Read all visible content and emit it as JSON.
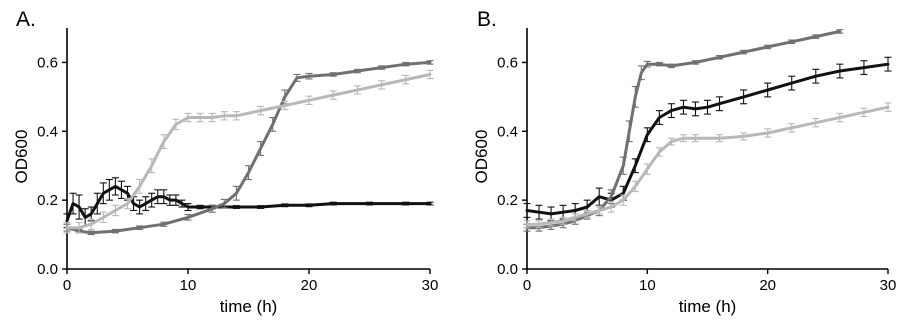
{
  "chart_data": [
    {
      "type": "line",
      "panel": "A.",
      "xlabel": "time (h)",
      "ylabel": "OD600",
      "xlim": [
        0,
        30
      ],
      "ylim": [
        0,
        0.7
      ],
      "xticks": [
        "0",
        "10",
        "20",
        "30"
      ],
      "yticks": [
        "0.0",
        "0.2",
        "0.4",
        "0.6"
      ],
      "grid": false,
      "series": [
        {
          "color": "#111111",
          "x": [
            0,
            0.5,
            1,
            1.5,
            2,
            2.5,
            3,
            3.5,
            4,
            4.5,
            5,
            5.5,
            6,
            6.5,
            7,
            7.5,
            8,
            8.5,
            9,
            9.5,
            10,
            11,
            12,
            14,
            16,
            18,
            20,
            22,
            25,
            28,
            30
          ],
          "y": [
            0.14,
            0.19,
            0.18,
            0.15,
            0.16,
            0.19,
            0.22,
            0.23,
            0.24,
            0.23,
            0.22,
            0.19,
            0.18,
            0.19,
            0.2,
            0.21,
            0.21,
            0.2,
            0.2,
            0.19,
            0.18,
            0.18,
            0.18,
            0.18,
            0.18,
            0.185,
            0.185,
            0.19,
            0.19,
            0.19,
            0.19
          ],
          "err": [
            0.02,
            0.03,
            0.035,
            0.025,
            0.02,
            0.03,
            0.03,
            0.03,
            0.025,
            0.025,
            0.02,
            0.02,
            0.02,
            0.02,
            0.02,
            0.02,
            0.02,
            0.015,
            0.015,
            0.01,
            0.01,
            0.005,
            0.005,
            0.004,
            0.004,
            0.004,
            0.004,
            0.004,
            0.004,
            0.004,
            0.004
          ]
        },
        {
          "color": "#707070",
          "x": [
            0,
            1,
            2,
            4,
            6,
            8,
            10,
            12,
            13,
            14,
            15,
            16,
            17,
            18,
            19,
            20,
            22,
            24,
            26,
            28,
            30
          ],
          "y": [
            0.12,
            0.11,
            0.105,
            0.11,
            0.12,
            0.13,
            0.15,
            0.175,
            0.19,
            0.22,
            0.28,
            0.35,
            0.42,
            0.5,
            0.555,
            0.56,
            0.565,
            0.575,
            0.585,
            0.595,
            0.6
          ],
          "err": [
            0.01,
            0.005,
            0.005,
            0.005,
            0.005,
            0.006,
            0.008,
            0.01,
            0.012,
            0.02,
            0.02,
            0.02,
            0.02,
            0.02,
            0.01,
            0.008,
            0.005,
            0.005,
            0.005,
            0.005,
            0.005
          ]
        },
        {
          "color": "#b8b8b8",
          "x": [
            0,
            1,
            2,
            3,
            4,
            5,
            6,
            7,
            8,
            9,
            10,
            11,
            12,
            13,
            14,
            16,
            18,
            20,
            22,
            24,
            26,
            28,
            30
          ],
          "y": [
            0.12,
            0.12,
            0.13,
            0.15,
            0.17,
            0.19,
            0.24,
            0.3,
            0.37,
            0.42,
            0.44,
            0.44,
            0.44,
            0.445,
            0.445,
            0.46,
            0.475,
            0.49,
            0.505,
            0.52,
            0.535,
            0.55,
            0.565
          ],
          "err": [
            0.015,
            0.015,
            0.015,
            0.015,
            0.015,
            0.015,
            0.02,
            0.02,
            0.02,
            0.015,
            0.012,
            0.012,
            0.012,
            0.012,
            0.012,
            0.012,
            0.012,
            0.012,
            0.012,
            0.012,
            0.012,
            0.012,
            0.012
          ]
        }
      ]
    },
    {
      "type": "line",
      "panel": "B.",
      "xlabel": "time (h)",
      "ylabel": "OD600",
      "xlim": [
        0,
        30
      ],
      "ylim": [
        0,
        0.7
      ],
      "xticks": [
        "0",
        "10",
        "20",
        "30"
      ],
      "yticks": [
        "0.0",
        "0.2",
        "0.4",
        "0.6"
      ],
      "grid": false,
      "series": [
        {
          "color": "#111111",
          "x": [
            0,
            1,
            2,
            3,
            4,
            5,
            6,
            7,
            8,
            9,
            10,
            11,
            12,
            13,
            14,
            15,
            16,
            18,
            20,
            22,
            24,
            26,
            28,
            30
          ],
          "y": [
            0.17,
            0.165,
            0.16,
            0.165,
            0.17,
            0.18,
            0.21,
            0.2,
            0.22,
            0.3,
            0.39,
            0.44,
            0.46,
            0.47,
            0.465,
            0.47,
            0.48,
            0.5,
            0.52,
            0.54,
            0.56,
            0.575,
            0.585,
            0.595
          ],
          "err": [
            0.02,
            0.02,
            0.02,
            0.02,
            0.02,
            0.02,
            0.025,
            0.02,
            0.02,
            0.02,
            0.02,
            0.02,
            0.02,
            0.02,
            0.02,
            0.02,
            0.02,
            0.02,
            0.02,
            0.02,
            0.02,
            0.02,
            0.02,
            0.02
          ]
        },
        {
          "color": "#707070",
          "x": [
            0,
            1,
            2,
            3,
            4,
            5,
            6,
            7,
            8,
            8.5,
            9,
            9.5,
            10,
            11,
            12,
            14,
            16,
            18,
            20,
            22,
            24,
            26
          ],
          "y": [
            0.12,
            0.12,
            0.125,
            0.13,
            0.14,
            0.155,
            0.17,
            0.21,
            0.3,
            0.4,
            0.5,
            0.57,
            0.595,
            0.595,
            0.59,
            0.6,
            0.615,
            0.63,
            0.645,
            0.66,
            0.675,
            0.69
          ],
          "err": [
            0.01,
            0.01,
            0.01,
            0.01,
            0.01,
            0.01,
            0.015,
            0.02,
            0.025,
            0.03,
            0.03,
            0.02,
            0.008,
            0.005,
            0.005,
            0.005,
            0.005,
            0.005,
            0.005,
            0.005,
            0.005,
            0.005
          ]
        },
        {
          "color": "#b8b8b8",
          "x": [
            0,
            1,
            2,
            3,
            4,
            5,
            6,
            7,
            8,
            9,
            10,
            11,
            12,
            13,
            14,
            16,
            18,
            20,
            22,
            24,
            26,
            28,
            30
          ],
          "y": [
            0.13,
            0.13,
            0.135,
            0.14,
            0.15,
            0.16,
            0.17,
            0.18,
            0.2,
            0.24,
            0.29,
            0.34,
            0.37,
            0.38,
            0.38,
            0.38,
            0.385,
            0.395,
            0.41,
            0.425,
            0.44,
            0.455,
            0.47
          ],
          "err": [
            0.01,
            0.01,
            0.01,
            0.01,
            0.01,
            0.01,
            0.01,
            0.015,
            0.015,
            0.015,
            0.015,
            0.012,
            0.01,
            0.01,
            0.01,
            0.01,
            0.01,
            0.012,
            0.012,
            0.012,
            0.012,
            0.012,
            0.012
          ]
        }
      ]
    }
  ]
}
